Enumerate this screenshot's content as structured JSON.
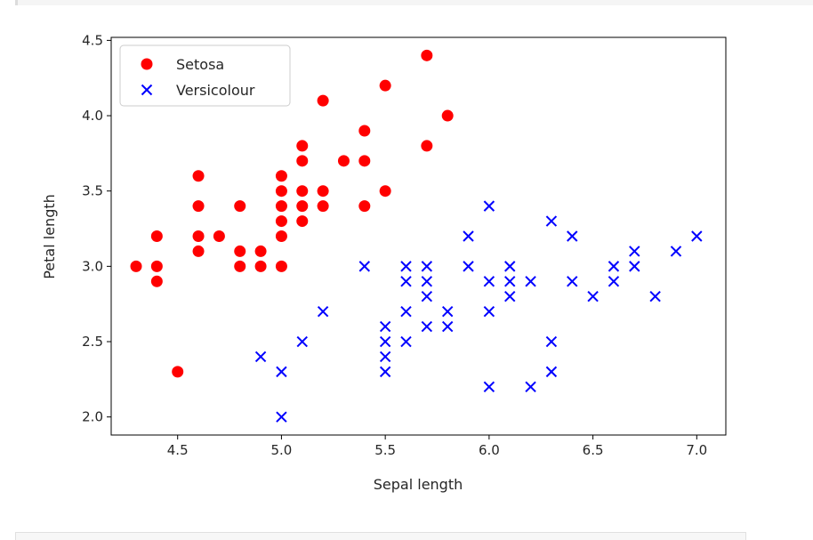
{
  "chart_data": {
    "type": "scatter",
    "title": "",
    "xlabel": "Sepal length",
    "ylabel": "Petal length",
    "xlim": [
      4.18,
      7.14
    ],
    "ylim": [
      1.88,
      4.52
    ],
    "xticks": [
      4.5,
      5.0,
      5.5,
      6.0,
      6.5,
      7.0
    ],
    "yticks": [
      2.0,
      2.5,
      3.0,
      3.5,
      4.0,
      4.5
    ],
    "grid": false,
    "legend_position": "top-left",
    "series": [
      {
        "name": "Setosa",
        "marker": "circle",
        "color": "#ff0000",
        "points": [
          [
            4.3,
            3.0
          ],
          [
            4.4,
            3.2
          ],
          [
            4.4,
            3.0
          ],
          [
            4.4,
            2.9
          ],
          [
            4.5,
            2.3
          ],
          [
            4.6,
            3.6
          ],
          [
            4.6,
            3.4
          ],
          [
            4.6,
            3.2
          ],
          [
            4.6,
            3.1
          ],
          [
            4.7,
            3.2
          ],
          [
            4.8,
            3.4
          ],
          [
            4.8,
            3.1
          ],
          [
            4.8,
            3.0
          ],
          [
            4.9,
            3.1
          ],
          [
            4.9,
            3.0
          ],
          [
            5.0,
            3.6
          ],
          [
            5.0,
            3.5
          ],
          [
            5.0,
            3.4
          ],
          [
            5.0,
            3.3
          ],
          [
            5.0,
            3.2
          ],
          [
            5.0,
            3.0
          ],
          [
            5.1,
            3.8
          ],
          [
            5.1,
            3.7
          ],
          [
            5.1,
            3.5
          ],
          [
            5.1,
            3.4
          ],
          [
            5.1,
            3.3
          ],
          [
            5.2,
            4.1
          ],
          [
            5.2,
            3.5
          ],
          [
            5.2,
            3.4
          ],
          [
            5.3,
            3.7
          ],
          [
            5.4,
            3.9
          ],
          [
            5.4,
            3.7
          ],
          [
            5.4,
            3.4
          ],
          [
            5.5,
            4.2
          ],
          [
            5.5,
            3.5
          ],
          [
            5.7,
            4.4
          ],
          [
            5.7,
            3.8
          ],
          [
            5.8,
            4.0
          ]
        ]
      },
      {
        "name": "Versicolour",
        "marker": "x",
        "color": "#0000ff",
        "points": [
          [
            4.9,
            2.4
          ],
          [
            5.0,
            2.3
          ],
          [
            5.0,
            2.0
          ],
          [
            5.1,
            2.5
          ],
          [
            5.2,
            2.7
          ],
          [
            5.4,
            3.0
          ],
          [
            5.5,
            2.6
          ],
          [
            5.5,
            2.5
          ],
          [
            5.5,
            2.4
          ],
          [
            5.5,
            2.3
          ],
          [
            5.6,
            3.0
          ],
          [
            5.6,
            2.9
          ],
          [
            5.6,
            2.7
          ],
          [
            5.6,
            2.5
          ],
          [
            5.7,
            3.0
          ],
          [
            5.7,
            2.9
          ],
          [
            5.7,
            2.8
          ],
          [
            5.7,
            2.6
          ],
          [
            5.8,
            2.7
          ],
          [
            5.8,
            2.6
          ],
          [
            5.9,
            3.2
          ],
          [
            5.9,
            3.0
          ],
          [
            6.0,
            3.4
          ],
          [
            6.0,
            2.9
          ],
          [
            6.0,
            2.7
          ],
          [
            6.0,
            2.2
          ],
          [
            6.1,
            3.0
          ],
          [
            6.1,
            2.9
          ],
          [
            6.1,
            2.8
          ],
          [
            6.2,
            2.9
          ],
          [
            6.2,
            2.2
          ],
          [
            6.3,
            3.3
          ],
          [
            6.3,
            2.5
          ],
          [
            6.3,
            2.3
          ],
          [
            6.4,
            3.2
          ],
          [
            6.4,
            2.9
          ],
          [
            6.5,
            2.8
          ],
          [
            6.6,
            3.0
          ],
          [
            6.6,
            2.9
          ],
          [
            6.7,
            3.1
          ],
          [
            6.7,
            3.0
          ],
          [
            6.8,
            2.8
          ],
          [
            6.9,
            3.1
          ],
          [
            7.0,
            3.2
          ]
        ]
      }
    ]
  }
}
